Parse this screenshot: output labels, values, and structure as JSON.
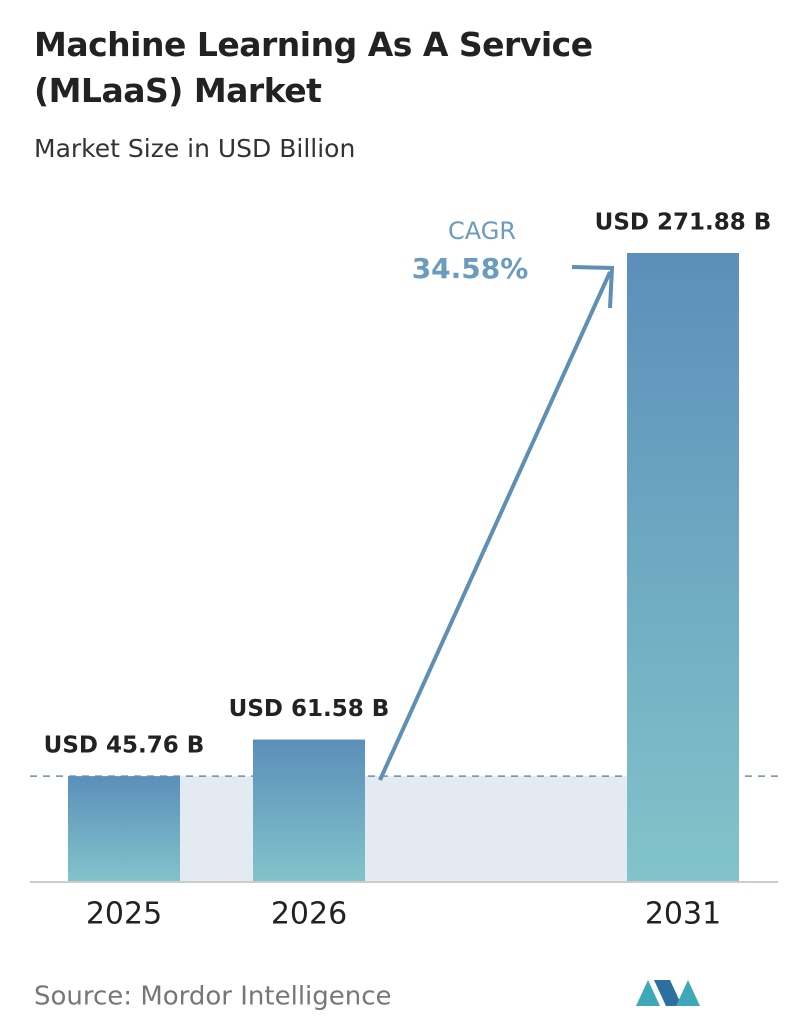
{
  "chart_data": {
    "type": "bar",
    "title": "Machine Learning As A Service (MLaaS) Market",
    "subtitle": "Market Size in USD Billion",
    "categories": [
      "2025",
      "2026",
      "2031"
    ],
    "values": [
      45.76,
      61.58,
      271.88
    ],
    "value_labels": [
      "USD 45.76 B",
      "USD 61.58 B",
      "USD 271.88 B"
    ],
    "colors": [
      "#5b8fba",
      "#82c4ca"
    ],
    "annotation": {
      "label": "CAGR",
      "value": "34.58%"
    },
    "source": "Source: Mordor Intelligence"
  }
}
